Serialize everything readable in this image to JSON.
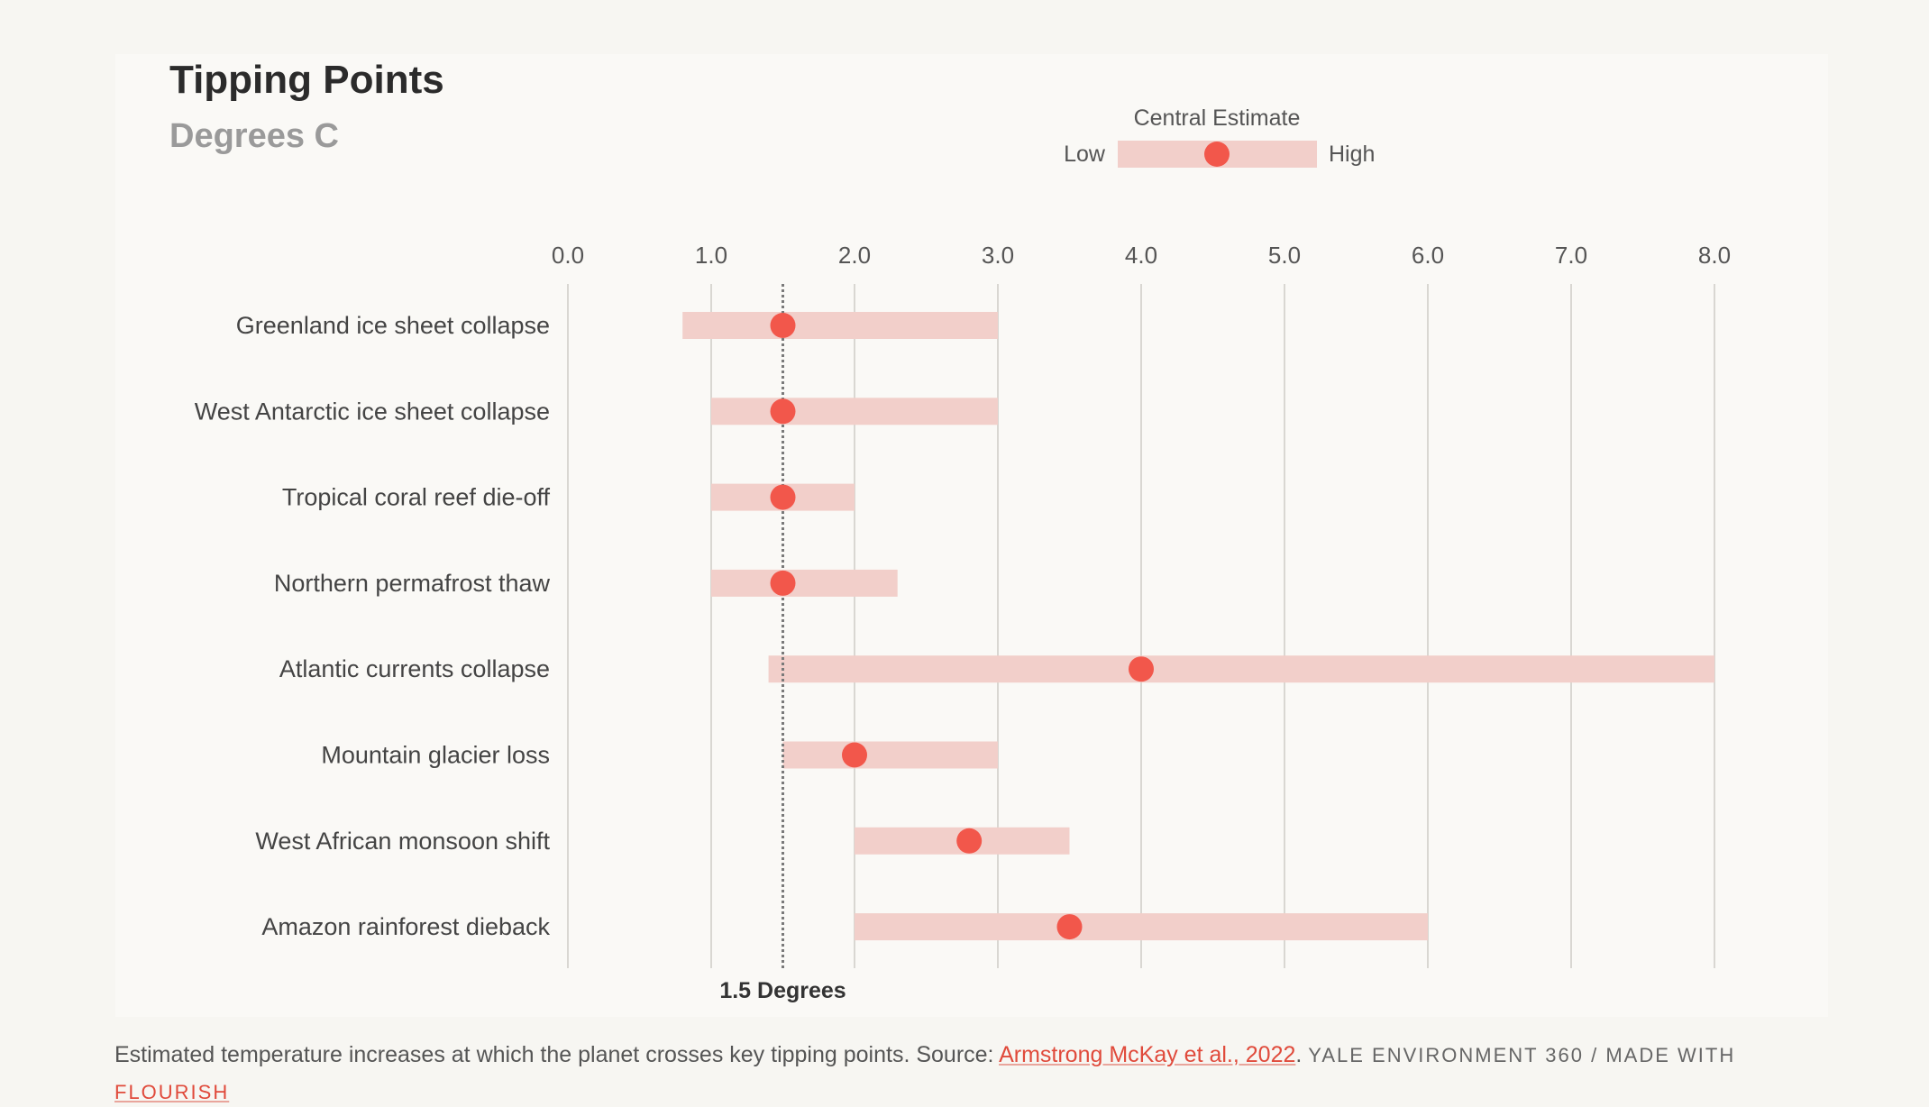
{
  "chart_data": {
    "type": "range-dot",
    "title": "Tipping Points",
    "subtitle": "Degrees C",
    "x_ticks": [
      "0.0",
      "1.0",
      "2.0",
      "3.0",
      "4.0",
      "5.0",
      "6.0",
      "7.0",
      "8.0"
    ],
    "xlim": [
      0,
      8
    ],
    "grid": true,
    "legend": {
      "title": "Central Estimate",
      "low_label": "Low",
      "high_label": "High",
      "placement": "top-center"
    },
    "reference_line": {
      "value": 1.5,
      "label": "1.5 Degrees"
    },
    "rows": [
      {
        "label": "Greenland ice sheet collapse",
        "low": 0.8,
        "high": 3.0,
        "central": 1.5
      },
      {
        "label": "West Antarctic ice sheet collapse",
        "low": 1.0,
        "high": 3.0,
        "central": 1.5
      },
      {
        "label": "Tropical coral reef die-off",
        "low": 1.0,
        "high": 2.0,
        "central": 1.5
      },
      {
        "label": "Northern permafrost thaw",
        "low": 1.0,
        "high": 2.3,
        "central": 1.5
      },
      {
        "label": "Atlantic currents collapse",
        "low": 1.4,
        "high": 8.0,
        "central": 4.0
      },
      {
        "label": "Mountain glacier loss",
        "low": 1.5,
        "high": 3.0,
        "central": 2.0
      },
      {
        "label": "West African monsoon shift",
        "low": 2.0,
        "high": 3.5,
        "central": 2.8
      },
      {
        "label": "Amazon rainforest dieback",
        "low": 2.0,
        "high": 6.0,
        "central": 3.5
      }
    ],
    "colors": {
      "range_bar": "#f2cfca",
      "central_dot": "#f2574b",
      "gridline": "#d9d7d2",
      "reference_line": "#7a7a7a"
    }
  },
  "footer": {
    "text_before": "Estimated temperature increases at which the planet crosses key tipping points. Source: ",
    "source_link": "Armstrong McKay et al., 2022",
    "text_after": ". ",
    "credit": "YALE ENVIRONMENT 360 / MADE WITH",
    "flourish_link": "FLOURISH"
  }
}
